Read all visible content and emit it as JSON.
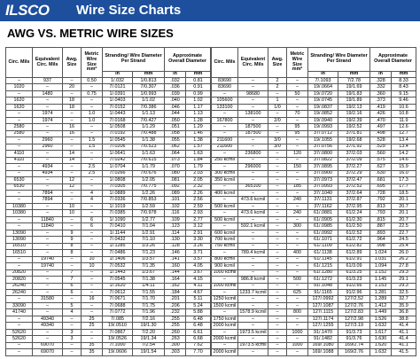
{
  "header": {
    "logo": "ILSCO",
    "title": "Wire Size Charts"
  },
  "section_title": "AWG VS. METRIC WIRE SIZES",
  "table": {
    "columns": [
      "Circ. Mils",
      "Equivalent Circ. Mils",
      "Awg. Size",
      "Metric Wire Size mm²",
      "Stranding/ Wire Diameter Per Strand",
      "Approximate Overall Diameter"
    ],
    "units": [
      "in",
      "mm",
      "in",
      "mm"
    ],
    "left": [
      [
        [
          "–",
          "937",
          "–",
          "0.50",
          "1/.032",
          "1/0.813",
          ".032",
          "0.81"
        ],
        [
          "1020",
          "–",
          "20",
          "–",
          "7/.0121",
          "7/0.307",
          ".036",
          "0.91"
        ],
        [
          "–",
          "1480",
          "–",
          "0.75",
          "1/.0391",
          "1/0.993",
          ".039",
          "0.99"
        ],
        [
          "1620",
          "–",
          "18",
          "–",
          "1/.0403",
          "1/1.02",
          ".040",
          "1.02"
        ],
        [
          "1620",
          "–",
          "18",
          "–",
          "7/.0152",
          "7/0.386",
          ".046",
          "1.17"
        ],
        [
          "–",
          "1974",
          "–",
          "1.0",
          "1/.0443",
          "1/1.13",
          ".044",
          "1.13"
        ],
        [
          "–",
          "1974",
          "–",
          "1.0",
          "7/.0168",
          "7/0.427",
          ".050",
          "1.28"
        ]
      ],
      [
        [
          "2580",
          "–",
          "16",
          "–",
          "1/.0508",
          "1/1.29",
          ".051",
          "1.29"
        ],
        [
          "2580",
          "–",
          "16",
          "–",
          "7/.0192",
          "7/0.488",
          ".058",
          "1.46"
        ],
        [
          "–",
          "2960",
          "–",
          "1.5",
          "1/.0545",
          "1/1.38",
          ".055",
          "1.38"
        ],
        [
          "–",
          "2960",
          "–",
          "1.5",
          "7/.0206",
          "7/0.523",
          ".062",
          "1.57"
        ],
        [
          "4110",
          "–",
          "14",
          "–",
          "1/.0641",
          "1/1.63",
          ".064",
          "1.63"
        ],
        [
          "4110",
          "–",
          "14",
          "–",
          "7/.0242",
          "7/0.615",
          ".073",
          "1.84"
        ]
      ],
      [
        [
          "–",
          "4934",
          "–",
          "2.5",
          "1/.0704",
          "1/1.79",
          ".070",
          "1.79"
        ],
        [
          "–",
          "4934",
          "–",
          "2.5",
          "7/.0266",
          "7/0.676",
          ".080",
          "2.03"
        ],
        [
          "6530",
          "–",
          "12",
          "–",
          "1/.0808",
          "1/2.05",
          ".081",
          "2.05"
        ],
        [
          "6530",
          "–",
          "12",
          "–",
          "7/.0305",
          "7/0.775",
          ".092",
          "2.32"
        ],
        [
          "–",
          "7894",
          "–",
          "4",
          "1/.0889",
          "1/2.26",
          ".089",
          "2.26"
        ],
        [
          "–",
          "7894",
          "–",
          "4",
          "7/.0336",
          "7/0.853",
          ".101",
          "2.56"
        ]
      ],
      [
        [
          "10380",
          "–",
          "10",
          "–",
          "1/.1019",
          "1/2.59",
          ".102",
          "2.59"
        ],
        [
          "10380",
          "–",
          "10",
          "–",
          "7/.0385",
          "7/0.978",
          ".116",
          "2.93"
        ],
        [
          "–",
          "11840",
          "–",
          "6",
          "1/.1090",
          "1/2.77",
          ".109",
          "2.77"
        ],
        [
          "–",
          "11840",
          "–",
          "6",
          "7/.0410",
          "7/1.04",
          ".123",
          "3.12"
        ],
        [
          "13090",
          "–",
          "9",
          "–",
          "1/.1144",
          "1/2.91",
          ".114",
          "2.91"
        ],
        [
          "13090",
          "–",
          "9",
          "–",
          "7/.0432",
          "7/1.10",
          ".130",
          "3.30"
        ]
      ],
      [
        [
          "16510",
          "–",
          "8",
          "–",
          "1/.1285",
          "1/3.26",
          ".128",
          "3.26"
        ],
        [
          "16510",
          "–",
          "8",
          "–",
          "7/.0486",
          "7/1.23",
          ".146",
          "3.71"
        ],
        [
          "–",
          "19740",
          "–",
          "10",
          "1/.1406",
          "1/3.57",
          ".141",
          "3.57"
        ],
        [
          "–",
          "19740",
          "–",
          "10",
          "7/.0532",
          "7/1.35",
          ".160",
          "4.05"
        ],
        [
          "20820",
          "–",
          "7",
          "–",
          "1/.1443",
          "1/3.67",
          ".144",
          "3.67"
        ],
        [
          "20820",
          "–",
          "7",
          "–",
          "7/.0545",
          "7/1.38",
          ".164",
          "4.15"
        ]
      ],
      [
        [
          "26240",
          "–",
          "6",
          "–",
          "1/.1620",
          "1/4.11",
          ".162",
          "4.11"
        ],
        [
          "26240",
          "–",
          "6",
          "–",
          "7/.0612",
          "7/1.55",
          ".184",
          "4.67"
        ],
        [
          "–",
          "31580",
          "–",
          "16",
          "7/.0671",
          "7/1.70",
          ".201",
          "5.11"
        ],
        [
          "33090",
          "–",
          "5",
          "–",
          "7/.0688",
          "7/1.75",
          ".206",
          "5.24"
        ],
        [
          "41740",
          "–",
          "4",
          "–",
          "7/.0772",
          "7/1.96",
          ".232",
          "5.88"
        ]
      ],
      [
        [
          "–",
          "49340",
          "–",
          "25",
          "7/.085",
          "7/2.16",
          ".255",
          "6.48"
        ],
        [
          "–",
          "49340",
          "–",
          "25",
          "19/.0510",
          "19/1.30",
          ".255",
          "6.48"
        ],
        [
          "52620",
          "–",
          "3",
          "–",
          "7/.0867",
          "7/2.20",
          ".260",
          "6.61"
        ],
        [
          "52620",
          "–",
          "3",
          "–",
          "19/.0526",
          "19/1.34",
          ".263",
          "6.68"
        ],
        [
          "–",
          "69070",
          "–",
          "35",
          "7/.1000",
          "7/2.54",
          ".300",
          "7.62"
        ],
        [
          "–",
          "69070",
          "–",
          "35",
          "19/.0606",
          "19/1.54",
          ".303",
          "7.70"
        ]
      ]
    ],
    "right": [
      [
        [
          "83690",
          "–",
          "2",
          "–",
          "7/.1093",
          "7/2.78",
          ".328",
          "8.33"
        ],
        [
          "83690",
          "–",
          "2",
          "–",
          "19/.0664",
          "19/1.69",
          ".332",
          "8.43"
        ],
        [
          "–",
          "98680",
          "–",
          "50",
          "19/.0720",
          "19/1.83",
          ".360",
          "9.15"
        ],
        [
          "105600",
          "–",
          "1",
          "–",
          "19/.0745",
          "19/1.89",
          ".373",
          "9.46"
        ],
        [
          "133100",
          "–",
          "1/0",
          "–",
          "19/.0837",
          "19/2.13",
          ".419",
          "10.6"
        ],
        [
          "–",
          "138100",
          "–",
          "70",
          "19/.0852",
          "19/2.16",
          ".426",
          "10.8"
        ],
        [
          "167800",
          "–",
          "2/0",
          "–",
          "19/.0940",
          "19/2.39",
          ".470",
          "11.9"
        ]
      ],
      [
        [
          "–",
          "187500",
          "–",
          "95",
          "19/.0993",
          "19/2.52",
          ".497",
          "12.6"
        ],
        [
          "–",
          "187500",
          "–",
          "95",
          "37/.0712",
          "37/1.81",
          ".498",
          "12.7"
        ],
        [
          "211600",
          "–",
          "3/0",
          "–",
          "19/.1055",
          "19/2.68",
          ".528",
          "13.4"
        ],
        [
          "211600",
          "–",
          "3/0",
          "–",
          "37/.0756",
          "37/1.92",
          ".529",
          "13.4"
        ],
        [
          "–",
          "236800",
          "–",
          "120",
          "37/.0800",
          "37/2.03",
          ".560",
          "14.2"
        ],
        [
          "250 kcmil",
          "–",
          "–",
          "–",
          "37/.0822",
          "37/2.09",
          ".575",
          "14.6"
        ]
      ],
      [
        [
          "–",
          "296000",
          "–",
          "150",
          "37/.0895",
          "37/2.27",
          ".627",
          "15.9"
        ],
        [
          "300 kcmil",
          "–",
          "–",
          "–",
          "37/.0900",
          "37/2.29",
          ".630",
          "16.0"
        ],
        [
          "350 kcmil",
          "–",
          "–",
          "–",
          "37/.0973",
          "37/2.47",
          ".681",
          "17.3"
        ],
        [
          "–",
          "365100",
          "–",
          "185",
          "37/.0993",
          "37/2.52",
          ".695",
          "17.7"
        ],
        [
          "400 kcmil",
          "–",
          "–",
          "–",
          "37/.1040",
          "37/2.64",
          ".728",
          "18.5"
        ]
      ],
      [
        [
          "–",
          "473.6 kcmil",
          "–",
          "240",
          "37/.1131",
          "37/2.87",
          ".792",
          "20.1"
        ],
        [
          "500 kcmil",
          "–",
          "–",
          "–",
          "37/.1162",
          "37/2.95",
          ".813",
          "20.7"
        ],
        [
          "–",
          "473.6 kcmil",
          "–",
          "240",
          "61/.0881",
          "61/2.24",
          ".793",
          "20.1"
        ],
        [
          "500 kcmil",
          "–",
          "–",
          "–",
          "61/.0905",
          "61/2.30",
          ".815",
          "20.7"
        ]
      ],
      [
        [
          "–",
          "592.1 kcmil",
          "–",
          "300",
          "61/.0985",
          "61/2.50",
          ".887",
          "22.5"
        ],
        [
          "600 kcmil",
          "–",
          "–",
          "–",
          "61/.0992",
          "61/2.52",
          ".893",
          "22.7"
        ],
        [
          "700 kcmil",
          "–",
          "–",
          "–",
          "61/.1071",
          "61/2.72",
          ".964",
          "24.5"
        ],
        [
          "750 kcmil",
          "–",
          "–",
          "–",
          "61/.1109",
          "61/2.82",
          ".998",
          "25.4"
        ],
        [
          "–",
          "789.4 kcmil",
          "–",
          "400",
          "61/.1138",
          "61/2.89",
          "1.024",
          "26.0"
        ],
        [
          "800 kcmil",
          "–",
          "–",
          "–",
          "61/.1145",
          "61/2.91",
          "1.031",
          "26.2"
        ],
        [
          "900 kcmil",
          "–",
          "–",
          "–",
          "61/.1215",
          "61/3.09",
          "1.094",
          "27.8"
        ]
      ],
      [
        [
          "1000 kcmil",
          "–",
          "–",
          "–",
          "61/.1280",
          "61/3.25",
          "1.152",
          "29.3"
        ],
        [
          "–",
          "986.8 kcmil",
          "–",
          "500",
          "61/.1272",
          "61/3.23",
          "1.145",
          "29.1"
        ],
        [
          "1000 kcmil",
          "–",
          "–",
          "–",
          "91/.1048",
          "91/2.66",
          "1.153",
          "29.3"
        ],
        [
          "–",
          "1233.7 kcmil",
          "–",
          "625",
          "91/.1165",
          "91/2.96",
          "1.281",
          "32.5"
        ]
      ],
      [
        [
          "1250 kcmil",
          "–",
          "–",
          "–",
          "127/.0992",
          "127/2.52",
          "1.289",
          "32.7"
        ],
        [
          "1500 kcmil",
          "–",
          "–",
          "–",
          "127/.1087",
          "127/2.76",
          "1.412",
          "35.9"
        ],
        [
          "–",
          "1578.9 kcmil",
          "–",
          "800",
          "127/.1115",
          "127/2.83",
          "1.449",
          "36.8"
        ],
        [
          "1750 kcmil",
          "–",
          "–",
          "–",
          "127/.1174",
          "127/2.98",
          "1.526",
          "38.8"
        ],
        [
          "2000 kcmil",
          "–",
          "–",
          "–",
          "127/.1255",
          "127/3.19",
          "1.632",
          "41.4"
        ]
      ],
      [
        [
          "–",
          "1973.5 kcmil",
          "–",
          "1000",
          "91/.1470",
          "91/3.73",
          "1.617",
          "41.1"
        ],
        [
          "2000 kcmil",
          "–",
          "–",
          "–",
          "91/.1482",
          "91/3.76",
          "1.630",
          "41.4"
        ],
        [
          "–",
          "1973.5 kcmil",
          "–",
          "1000",
          "169/.1080",
          "169/2.74",
          "1.620",
          "41.1"
        ],
        [
          "2000 kcmil",
          "–",
          "–",
          "–",
          "169/.1088",
          "169/2.76",
          "1.632",
          "41.5"
        ]
      ]
    ]
  }
}
